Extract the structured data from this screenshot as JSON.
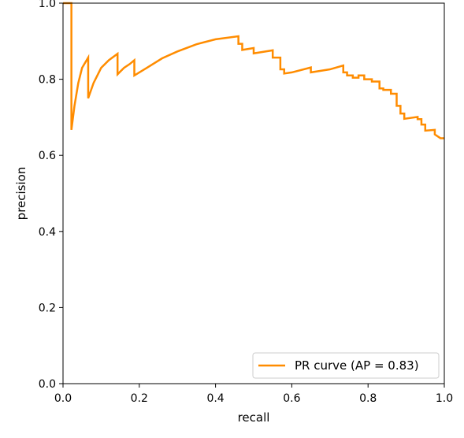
{
  "chart_data": {
    "type": "line",
    "title": "",
    "xlabel": "recall",
    "ylabel": "precision",
    "xlim": [
      0.0,
      1.0
    ],
    "ylim": [
      0.0,
      1.0
    ],
    "xticks": [
      "0.0",
      "0.2",
      "0.4",
      "0.6",
      "0.8",
      "1.0"
    ],
    "yticks": [
      "0.0",
      "0.2",
      "0.4",
      "0.6",
      "0.8",
      "1.0"
    ],
    "grid": false,
    "legend_position": "lower-right",
    "series": [
      {
        "name": "PR curve (AP = 0.83)",
        "color": "#ff8c00",
        "x": [
          0.0,
          0.022,
          0.022,
          0.03,
          0.04,
          0.05,
          0.066,
          0.066,
          0.08,
          0.1,
          0.12,
          0.143,
          0.143,
          0.16,
          0.175,
          0.187,
          0.187,
          0.22,
          0.26,
          0.3,
          0.35,
          0.4,
          0.46,
          0.46,
          0.47,
          0.47,
          0.5,
          0.5,
          0.55,
          0.55,
          0.57,
          0.57,
          0.58,
          0.58,
          0.6,
          0.65,
          0.65,
          0.7,
          0.735,
          0.735,
          0.745,
          0.745,
          0.76,
          0.76,
          0.775,
          0.775,
          0.79,
          0.79,
          0.81,
          0.81,
          0.83,
          0.83,
          0.84,
          0.84,
          0.86,
          0.86,
          0.875,
          0.875,
          0.885,
          0.885,
          0.895,
          0.895,
          0.93,
          0.93,
          0.94,
          0.94,
          0.95,
          0.95,
          0.975,
          0.975,
          0.99,
          1.0
        ],
        "y": [
          1.0,
          1.0,
          0.667,
          0.73,
          0.79,
          0.83,
          0.857,
          0.75,
          0.79,
          0.83,
          0.85,
          0.867,
          0.813,
          0.83,
          0.84,
          0.85,
          0.81,
          0.83,
          0.855,
          0.873,
          0.892,
          0.905,
          0.913,
          0.893,
          0.893,
          0.877,
          0.882,
          0.868,
          0.876,
          0.857,
          0.857,
          0.826,
          0.826,
          0.815,
          0.818,
          0.831,
          0.818,
          0.826,
          0.836,
          0.818,
          0.818,
          0.81,
          0.81,
          0.804,
          0.804,
          0.81,
          0.81,
          0.8,
          0.8,
          0.794,
          0.794,
          0.776,
          0.776,
          0.772,
          0.772,
          0.762,
          0.762,
          0.73,
          0.73,
          0.71,
          0.71,
          0.696,
          0.701,
          0.695,
          0.695,
          0.681,
          0.681,
          0.665,
          0.667,
          0.655,
          0.645,
          0.645
        ]
      }
    ]
  }
}
